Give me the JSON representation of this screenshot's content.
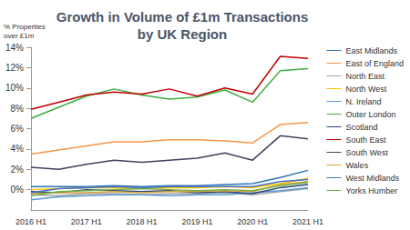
{
  "chart_data": {
    "type": "line",
    "title": "Growth in Volume of £1m Transactions\nby UK Region",
    "y_label": "% Properties\nover £1m",
    "categories": [
      "2016 H1",
      null,
      "2017 H1",
      null,
      "2018 H1",
      null,
      "2019 H1",
      null,
      "2020 H1",
      null,
      "2021 H1"
    ],
    "ylim": [
      -2,
      14
    ],
    "yticks": [
      {
        "value": 0,
        "label": "0%"
      },
      {
        "value": 2,
        "label": "2%"
      },
      {
        "value": 4,
        "label": "4%"
      },
      {
        "value": 6,
        "label": "6%"
      },
      {
        "value": 8,
        "label": "8%"
      },
      {
        "value": 10,
        "label": "10%"
      },
      {
        "value": 12,
        "label": "12%"
      },
      {
        "value": 14,
        "label": "14%"
      }
    ],
    "grid": false,
    "legend": "right",
    "series": [
      {
        "name": "East Midlands",
        "color": "#2e75b6",
        "values": [
          0.3,
          0.3,
          0.3,
          0.4,
          0.3,
          0.4,
          0.4,
          0.5,
          0.6,
          1.2,
          1.9
        ]
      },
      {
        "name": "East of England",
        "color": "#f79646",
        "values": [
          3.5,
          3.9,
          4.3,
          4.7,
          4.7,
          4.9,
          4.9,
          4.8,
          4.6,
          6.4,
          6.6
        ]
      },
      {
        "name": "North East",
        "color": "#a5a5a5",
        "values": [
          -0.5,
          -0.6,
          -0.4,
          -0.4,
          -0.5,
          -0.4,
          -0.4,
          -0.3,
          -0.5,
          -0.2,
          0.1
        ]
      },
      {
        "name": "North West",
        "color": "#ffc000",
        "values": [
          0.0,
          0.1,
          0.2,
          0.2,
          0.1,
          0.2,
          0.2,
          0.3,
          0.2,
          0.6,
          1.1
        ]
      },
      {
        "name": "N. Ireland",
        "color": "#5b9bd5",
        "values": [
          -1.0,
          -0.7,
          -0.6,
          -0.5,
          -0.5,
          -0.6,
          -0.5,
          -0.5,
          -0.3,
          -0.1,
          0.2
        ]
      },
      {
        "name": "Outer London",
        "color": "#3cb043",
        "values": [
          7.0,
          8.1,
          9.2,
          9.9,
          9.3,
          8.9,
          9.1,
          9.8,
          8.6,
          11.7,
          11.9
        ]
      },
      {
        "name": "Scotland",
        "color": "#264478",
        "values": [
          -0.2,
          -0.3,
          0.0,
          -0.1,
          -0.2,
          -0.1,
          -0.3,
          -0.2,
          -0.4,
          0.2,
          0.5
        ]
      },
      {
        "name": "South East",
        "color": "#c00000",
        "values": [
          7.9,
          8.6,
          9.3,
          9.6,
          9.4,
          9.9,
          9.2,
          10.0,
          9.4,
          13.1,
          12.9
        ]
      },
      {
        "name": "South West",
        "color": "#43415e",
        "values": [
          2.2,
          2.0,
          2.5,
          2.9,
          2.7,
          2.9,
          3.1,
          3.6,
          2.9,
          5.3,
          5.0
        ]
      },
      {
        "name": "Wales",
        "color": "#d9a441",
        "values": [
          -0.4,
          -0.3,
          -0.3,
          -0.2,
          -0.3,
          -0.2,
          -0.2,
          -0.1,
          -0.2,
          0.5,
          0.8
        ]
      },
      {
        "name": "West Midlands",
        "color": "#4472c4",
        "values": [
          -0.3,
          0.1,
          0.2,
          0.3,
          0.2,
          0.3,
          0.3,
          0.3,
          0.3,
          0.8,
          1.0
        ]
      },
      {
        "name": "Yorks Humber",
        "color": "#70ad47",
        "values": [
          -0.6,
          -0.2,
          -0.1,
          0.0,
          0.1,
          0.0,
          -0.1,
          0.0,
          -0.1,
          0.4,
          0.7
        ]
      }
    ]
  }
}
